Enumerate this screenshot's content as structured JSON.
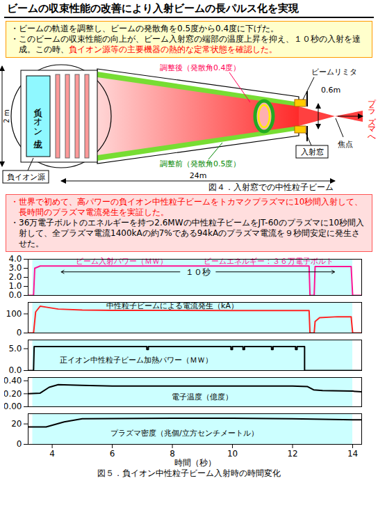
{
  "header": {
    "title": "ビームの収束性能の改善により入射ビームの長パルス化を実現"
  },
  "summary": {
    "bullets": [
      [
        {
          "text": "・ビームの軌道を調整し、ビームの発散角を0.5度から0.4度に下げた。",
          "color": "#000000"
        }
      ],
      [
        {
          "text": "・このビームの収束性能の向上が、ビーム入射窓の端部の温度上昇を抑え、１０秒の入射を達成。この時、",
          "color": "#000000"
        },
        {
          "text": "負イオン源等の主要機器の熱的な定常状態を確認した。",
          "color": "#ff0000"
        }
      ]
    ]
  },
  "figure4": {
    "labels": {
      "generator": "負イオン生成",
      "source": "負イオン源",
      "height": "2 m",
      "length": "24m",
      "after": "調整後（発散角0.4度）",
      "before": "調整前（発散角0.5度）",
      "limiter": "ビームリミタ",
      "aperture": "0.6m",
      "window": "入射窓",
      "focus": "焦点",
      "to_plasma": "プラズマへ"
    },
    "caption": "図４．入射窓での中性粒子ビーム"
  },
  "results": {
    "bullets": [
      [
        {
          "text": "・世界で初めて、高パワーの負イオン中性粒子ビームをトカマクプラズマに10秒間入射して、長時間のプラズマ電流発生を実証した。",
          "color": "#ff0000"
        }
      ],
      [
        {
          "text": "・36万電子ボルトのエネルギーを持つ2.6MWの中性粒子ビームをJT-60のプラズマに10秒間入射して、全プラズマ電流1400kAの約7%である94kAのプラズマ電流を９秒間安定に発生させた。",
          "color": "#000000"
        }
      ]
    ]
  },
  "chart_data": [
    {
      "type": "line",
      "color": "#ff1493",
      "x": [
        3.2,
        3.38,
        3.42,
        3.6,
        4.0,
        12.55,
        12.58,
        12.72,
        12.75,
        13.95,
        14.0,
        14.3
      ],
      "values": [
        0,
        0,
        3.0,
        3.25,
        3.25,
        3.25,
        0,
        0,
        3.2,
        3.2,
        0,
        0
      ],
      "xlim": [
        3.2,
        14.3
      ],
      "ylim": [
        0,
        4
      ],
      "yticks": [
        0,
        1,
        2,
        3,
        4
      ],
      "shade": [
        3.35,
        14.0
      ],
      "tick_labels": "y",
      "annotations": [
        {
          "text": "ビーム入射パワー（ＭＷ）",
          "x": 6.3,
          "y": 3.8,
          "color": "#ff1493"
        },
        {
          "text": "ビームエネルギー：３６万電子ボルト",
          "x": 11.2,
          "y": 3.8,
          "color": "#ff1493"
        }
      ],
      "span_label": {
        "text": "１０秒",
        "x1": 4.3,
        "x2": 13.4,
        "y": 2.6
      }
    },
    {
      "type": "line",
      "color": "#ff2222",
      "x": [
        3.2,
        3.38,
        3.45,
        3.6,
        3.8,
        4.2,
        5.0,
        6.0,
        8.0,
        10.0,
        12.55,
        12.58,
        12.72,
        12.75,
        12.9,
        13.5,
        13.95,
        14.0,
        14.3
      ],
      "values": [
        0,
        0,
        110,
        140,
        135,
        125,
        120,
        118,
        118,
        117,
        117,
        0,
        0,
        60,
        80,
        85,
        85,
        0,
        0
      ],
      "xlim": [
        3.2,
        14.3
      ],
      "ylim": [
        0,
        160
      ],
      "yticks": [
        0,
        100
      ],
      "shade": [
        3.35,
        14.0
      ],
      "tick_labels": "y",
      "annotations": [
        {
          "text": "中性粒子ビームによる電流発生（kA）",
          "x": 8.0,
          "y": 142,
          "color": "#000000"
        }
      ]
    },
    {
      "type": "line",
      "color": "#000000",
      "x": [
        3.2,
        3.38,
        3.4,
        7.15,
        7.15,
        7.2,
        7.2,
        9.95,
        9.95,
        10.0,
        10.0,
        10.35,
        10.35,
        10.4,
        10.4,
        11.3,
        11.3,
        11.35,
        11.35,
        12.1,
        12.1,
        12.15,
        12.15,
        12.4,
        12.4,
        14.3
      ],
      "values": [
        0,
        0,
        5.5,
        5.5,
        4.8,
        4.8,
        5.5,
        5.5,
        4.8,
        4.8,
        5.5,
        5.5,
        4.8,
        4.8,
        5.5,
        5.5,
        4.8,
        4.8,
        5.5,
        5.5,
        4.8,
        4.8,
        5.5,
        5.5,
        0,
        0
      ],
      "xlim": [
        3.2,
        14.3
      ],
      "ylim": [
        0,
        7
      ],
      "yticks": [
        0,
        5
      ],
      "shade": [
        3.35,
        14.0
      ],
      "tick_labels": "y",
      "annotations": [
        {
          "text": "正イオン中性粒子ビーム加熱パワー（ＭＷ）",
          "x": 6.8,
          "y": 2.4,
          "color": "#000000"
        }
      ]
    },
    {
      "type": "line",
      "color": "#000000",
      "x": [
        3.2,
        3.6,
        3.9,
        4.2,
        5.0,
        6.0,
        8.0,
        10.0,
        12.0,
        12.5,
        12.7,
        13.0,
        14.0,
        14.3
      ],
      "values": [
        0.2,
        0.21,
        0.3,
        0.34,
        0.33,
        0.32,
        0.32,
        0.32,
        0.32,
        0.31,
        0.26,
        0.25,
        0.24,
        0.23
      ],
      "xlim": [
        3.2,
        14.3
      ],
      "ylim": [
        0,
        0.45
      ],
      "yticks": [
        0,
        0.2,
        0.4
      ],
      "shade": [
        3.35,
        14.0
      ],
      "tick_labels": "y",
      "annotations": [
        {
          "text": "電子温度（億度）",
          "x": 9.0,
          "y": 0.15,
          "color": "#000000"
        }
      ]
    },
    {
      "type": "line",
      "color": "#000000",
      "x": [
        3.2,
        3.8,
        4.4,
        5.0,
        8.0,
        10.0,
        12.0,
        13.0,
        14.0,
        14.3
      ],
      "values": [
        17,
        17,
        22,
        25,
        25.5,
        25.5,
        25,
        24.5,
        24,
        24
      ],
      "xlim": [
        3.2,
        14.3
      ],
      "ylim": [
        0,
        30
      ],
      "yticks": [
        0,
        20
      ],
      "xticks": [
        4,
        6,
        8,
        10,
        12,
        14
      ],
      "xlabel": "時間（秒）",
      "shade": [
        3.35,
        14.0
      ],
      "annotations": [
        {
          "text": "プラズマ密度（兆個/立方センチメートル）",
          "x": 8.4,
          "y": 11,
          "color": "#000000"
        }
      ]
    }
  ],
  "figure5": {
    "caption": "図５．負イオン中性粒子ビーム入射時の時間変化"
  }
}
